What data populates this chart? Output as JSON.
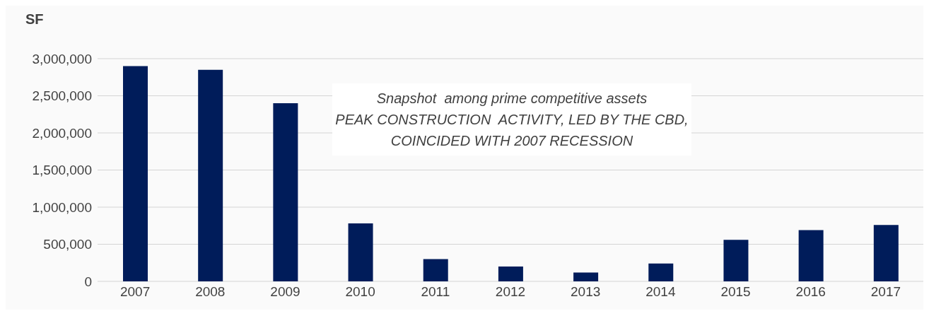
{
  "chart_data": {
    "type": "bar",
    "ylabel": "SF",
    "categories": [
      "2007",
      "2008",
      "2009",
      "2010",
      "2011",
      "2012",
      "2013",
      "2014",
      "2015",
      "2016",
      "2017"
    ],
    "values": [
      2900000,
      2850000,
      2400000,
      780000,
      300000,
      200000,
      120000,
      240000,
      560000,
      690000,
      760000
    ],
    "color": "#001c5a",
    "ylim": [
      0,
      3000000
    ],
    "yticks": [
      0,
      {
        "value": 500000,
        "label": "500,000"
      },
      {
        "value": 1000000,
        "label": "1,000,000"
      },
      {
        "value": 1500000,
        "label": "1,500,000"
      },
      {
        "value": 2000000,
        "label": "2,000,000"
      },
      {
        "value": 2500000,
        "label": "2,500,000"
      },
      {
        "value": 3000000,
        "label": "3,000,000"
      }
    ],
    "grid": "y",
    "annotations": [
      "Snapshot  among prime competitive assets",
      "PEAK CONSTRUCTION  ACTIVITY, LED BY THE CBD, COINCIDED WITH 2007 RECESSION"
    ]
  }
}
